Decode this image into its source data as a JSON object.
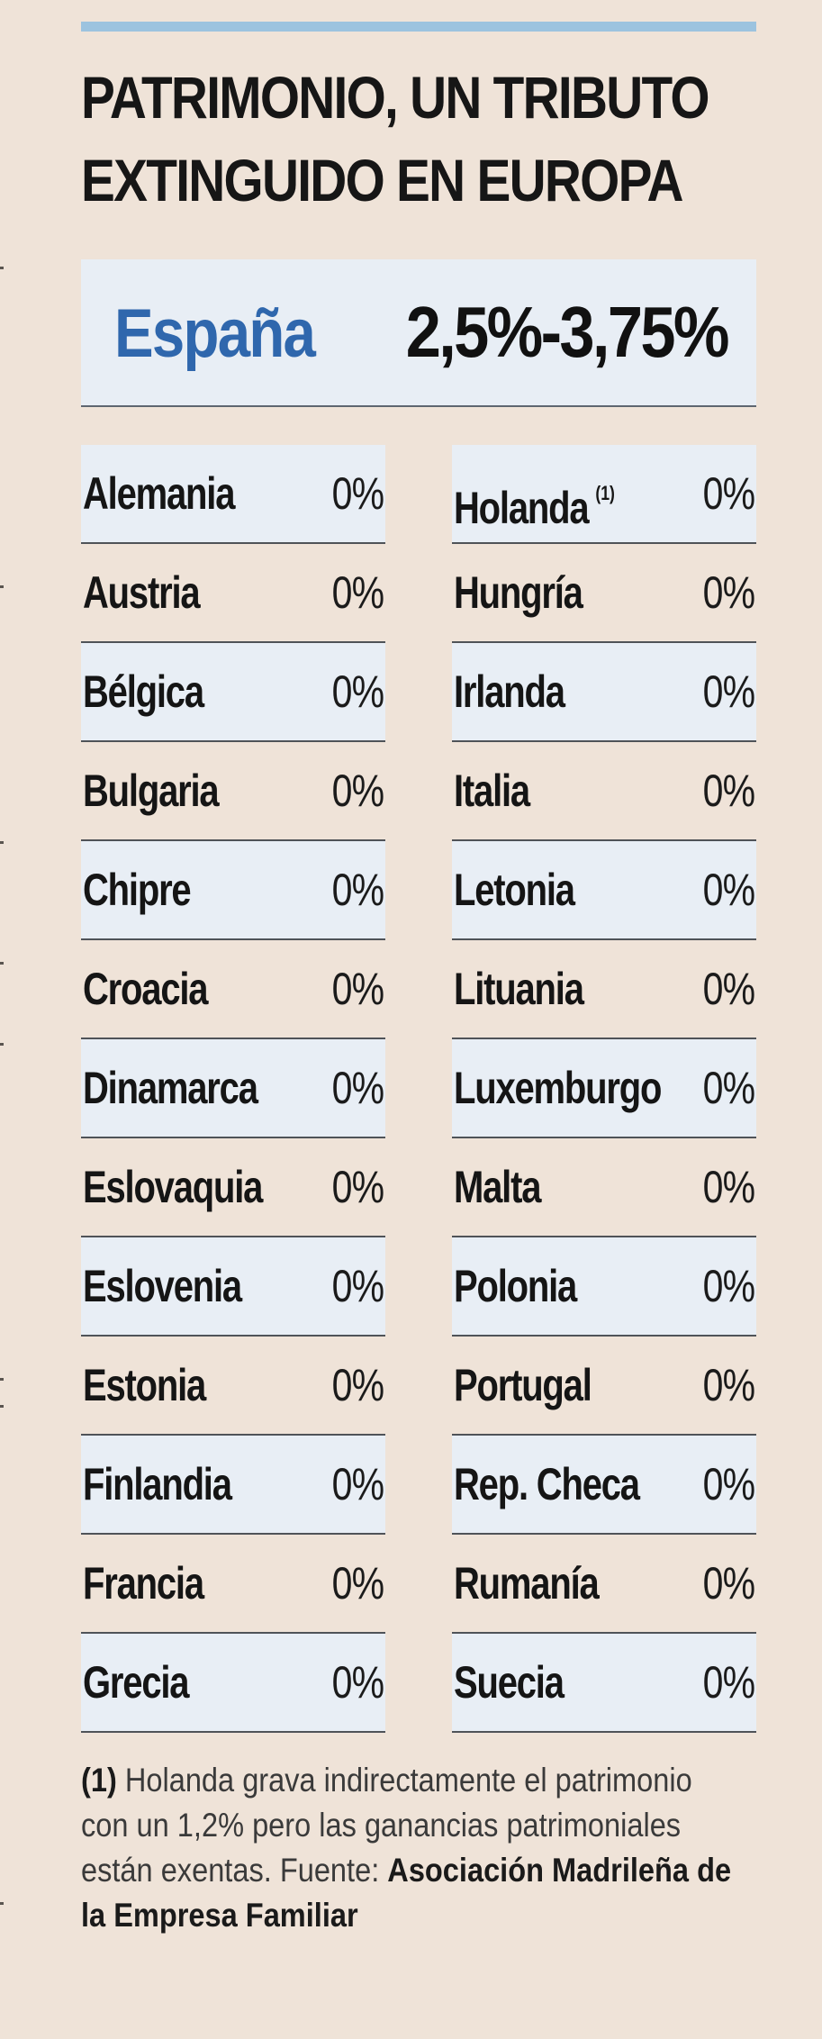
{
  "title": {
    "line1": "PATRIMONIO, UN TRIBUTO",
    "line2": "EXTINGUIDO EN EUROPA"
  },
  "highlight": {
    "country": "España",
    "rate": "2,5%-3,75%"
  },
  "countries_left": [
    {
      "name": "Alemania",
      "rate": "0%"
    },
    {
      "name": "Austria",
      "rate": "0%"
    },
    {
      "name": "Bélgica",
      "rate": "0%"
    },
    {
      "name": "Bulgaria",
      "rate": "0%"
    },
    {
      "name": "Chipre",
      "rate": "0%"
    },
    {
      "name": "Croacia",
      "rate": "0%"
    },
    {
      "name": "Dinamarca",
      "rate": "0%"
    },
    {
      "name": "Eslovaquia",
      "rate": "0%"
    },
    {
      "name": "Eslovenia",
      "rate": "0%"
    },
    {
      "name": "Estonia",
      "rate": "0%"
    },
    {
      "name": "Finlandia",
      "rate": "0%"
    },
    {
      "name": "Francia",
      "rate": "0%"
    },
    {
      "name": "Grecia",
      "rate": "0%"
    }
  ],
  "countries_right": [
    {
      "name": "Holanda",
      "note": "(1)",
      "rate": "0%"
    },
    {
      "name": "Hungría",
      "rate": "0%"
    },
    {
      "name": "Irlanda",
      "rate": "0%"
    },
    {
      "name": "Italia",
      "rate": "0%"
    },
    {
      "name": "Letonia",
      "rate": "0%"
    },
    {
      "name": "Lituania",
      "rate": "0%"
    },
    {
      "name": "Luxemburgo",
      "rate": "0%"
    },
    {
      "name": "Malta",
      "rate": "0%"
    },
    {
      "name": "Polonia",
      "rate": "0%"
    },
    {
      "name": "Portugal",
      "rate": "0%"
    },
    {
      "name": "Rep. Checa",
      "rate": "0%"
    },
    {
      "name": "Rumanía",
      "rate": "0%"
    },
    {
      "name": "Suecia",
      "rate": "0%"
    }
  ],
  "footnote": {
    "marker": "(1)",
    "text_1": " Holanda grava indirectamente el patrimonio",
    "text_2": "con un 1,2% pero las ganancias patrimoniales",
    "text_3": "están exentas. Fuente: ",
    "source_part1": "Asociación Madrileña de",
    "source_part2": "la Empresa Familiar"
  },
  "colors": {
    "background": "#efe3d8",
    "accent_rule": "#9cc3df",
    "highlight_box": "#e8eef5",
    "spain_text": "#2f67ad"
  }
}
